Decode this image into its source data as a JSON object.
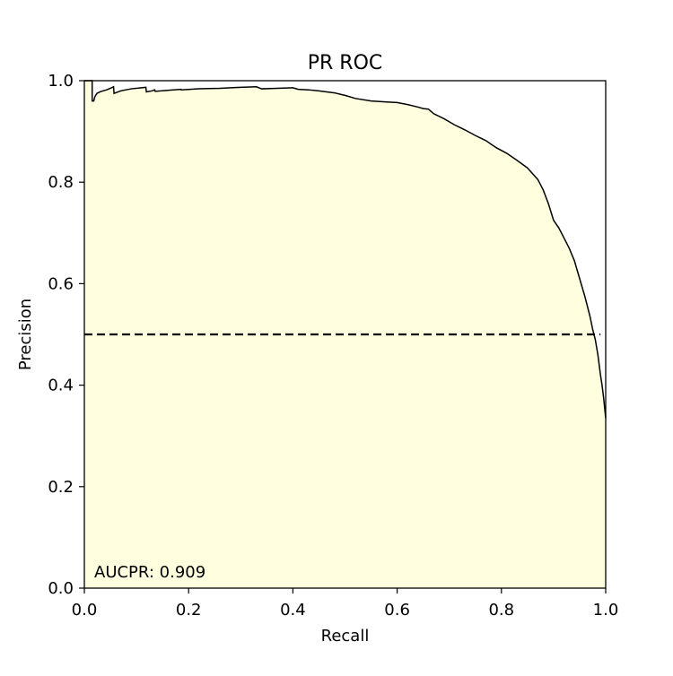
{
  "chart_data": {
    "type": "area",
    "title": "PR ROC",
    "xlabel": "Recall",
    "ylabel": "Precision",
    "xlim": [
      0.0,
      1.0
    ],
    "ylim": [
      0.0,
      1.0
    ],
    "x_ticks": [
      "0.0",
      "0.2",
      "0.4",
      "0.6",
      "0.8",
      "1.0"
    ],
    "y_ticks": [
      "0.0",
      "0.2",
      "0.4",
      "0.6",
      "0.8",
      "1.0"
    ],
    "grid": false,
    "legend": "none",
    "annotation": "AUCPR: 0.909",
    "fill_color": "#ffffe0",
    "line_color": "#000000",
    "series": [
      {
        "x": [
          0.0,
          0.015,
          0.015,
          0.018,
          0.02,
          0.024,
          0.03,
          0.036,
          0.043,
          0.05,
          0.056,
          0.057,
          0.07,
          0.09,
          0.11,
          0.118,
          0.119,
          0.13,
          0.135,
          0.136,
          0.16,
          0.185,
          0.186,
          0.22,
          0.26,
          0.3,
          0.33,
          0.34,
          0.37,
          0.4,
          0.41,
          0.43,
          0.45,
          0.48,
          0.5,
          0.52,
          0.55,
          0.58,
          0.6,
          0.62,
          0.64,
          0.65,
          0.66,
          0.67,
          0.69,
          0.71,
          0.73,
          0.75,
          0.77,
          0.79,
          0.81,
          0.83,
          0.85,
          0.87,
          0.88,
          0.89,
          0.9,
          0.91,
          0.92,
          0.93,
          0.94,
          0.95,
          0.96,
          0.965,
          0.97,
          0.975,
          0.98,
          0.985,
          0.99,
          0.993,
          0.996,
          1.0
        ],
        "y": [
          1.0,
          1.0,
          0.96,
          0.96,
          0.968,
          0.975,
          0.978,
          0.98,
          0.982,
          0.985,
          0.988,
          0.975,
          0.98,
          0.984,
          0.986,
          0.987,
          0.978,
          0.98,
          0.982,
          0.979,
          0.981,
          0.983,
          0.982,
          0.984,
          0.985,
          0.987,
          0.988,
          0.984,
          0.985,
          0.986,
          0.983,
          0.982,
          0.98,
          0.976,
          0.971,
          0.965,
          0.96,
          0.958,
          0.957,
          0.953,
          0.948,
          0.945,
          0.944,
          0.935,
          0.925,
          0.913,
          0.903,
          0.892,
          0.882,
          0.868,
          0.857,
          0.843,
          0.828,
          0.805,
          0.785,
          0.758,
          0.725,
          0.71,
          0.69,
          0.67,
          0.645,
          0.61,
          0.575,
          0.555,
          0.535,
          0.51,
          0.49,
          0.46,
          0.42,
          0.4,
          0.375,
          0.335
        ]
      }
    ],
    "baseline": {
      "y": 0.5,
      "x_range": [
        0.0,
        0.99
      ],
      "style": "dashed"
    }
  }
}
